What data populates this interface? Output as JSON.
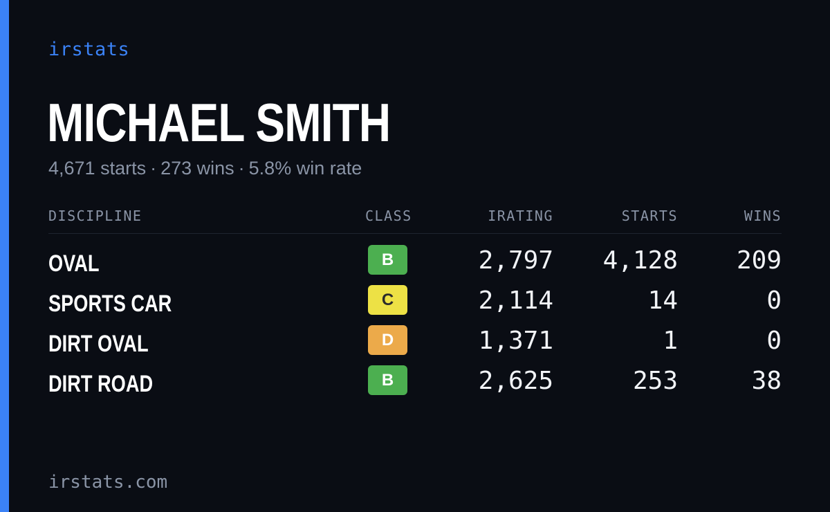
{
  "brand": "irstats",
  "driver": {
    "name": "MICHAEL SMITH",
    "starts": "4,671 starts",
    "wins": "273 wins",
    "win_rate": "5.8% win rate",
    "separator": "·"
  },
  "table": {
    "headers": {
      "discipline": "DISCIPLINE",
      "class": "CLASS",
      "irating": "IRATING",
      "starts": "STARTS",
      "wins": "WINS"
    },
    "rows": [
      {
        "discipline": "OVAL",
        "class": "B",
        "class_color": "#4caf50",
        "class_text_color": "#ffffff",
        "irating": "2,797",
        "starts": "4,128",
        "wins": "209"
      },
      {
        "discipline": "SPORTS CAR",
        "class": "C",
        "class_color": "#ede145",
        "class_text_color": "#2b2b2b",
        "irating": "2,114",
        "starts": "14",
        "wins": "0"
      },
      {
        "discipline": "DIRT OVAL",
        "class": "D",
        "class_color": "#ecaa4a",
        "class_text_color": "#ffffff",
        "irating": "1,371",
        "starts": "1",
        "wins": "0"
      },
      {
        "discipline": "DIRT ROAD",
        "class": "B",
        "class_color": "#4caf50",
        "class_text_color": "#ffffff",
        "irating": "2,625",
        "starts": "253",
        "wins": "38"
      }
    ]
  },
  "footer": "irstats.com",
  "colors": {
    "background": "#0a0d14",
    "accent": "#3b82f6",
    "muted": "#8a94a6"
  }
}
